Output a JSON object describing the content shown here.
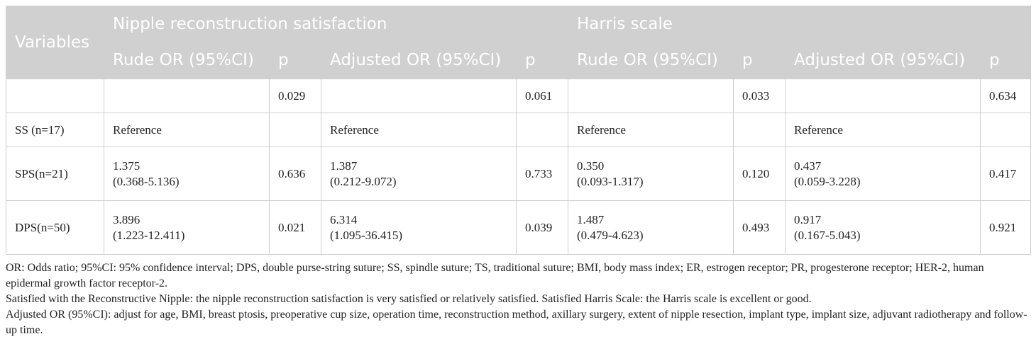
{
  "headers": {
    "variables": "Variables",
    "group1": "Nipple reconstruction satisfaction",
    "group2": "Harris scale",
    "sub": [
      "Rude OR (95%CI)",
      "p",
      "Adjusted OR (95%CI)",
      "p",
      "Rude OR (95%CI)",
      "p",
      "Adjusted OR (95%CI)",
      "p"
    ]
  },
  "rows": [
    {
      "label": "",
      "c": [
        [
          "",
          ""
        ],
        "0.029",
        [
          "",
          ""
        ],
        "0.061",
        [
          "",
          ""
        ],
        "0.033",
        [
          "",
          ""
        ],
        "0.634"
      ]
    },
    {
      "label": "SS (n=17)",
      "c": [
        [
          "Reference",
          ""
        ],
        "",
        [
          "Reference",
          ""
        ],
        "",
        [
          "Reference",
          ""
        ],
        "",
        [
          "Reference",
          ""
        ],
        ""
      ]
    },
    {
      "label": "SPS(n=21)",
      "c": [
        [
          "1.375",
          "(0.368-5.136)"
        ],
        "0.636",
        [
          "1.387",
          "(0.212-9.072)"
        ],
        "0.733",
        [
          "0.350",
          "(0.093-1.317)"
        ],
        "0.120",
        [
          "0.437",
          "(0.059-3.228)"
        ],
        "0.417"
      ]
    },
    {
      "label": "DPS(n=50)",
      "c": [
        [
          "3.896",
          "(1.223-12.411)"
        ],
        "0.021",
        [
          "6.314",
          "(1.095-36.415)"
        ],
        "0.039",
        [
          "1.487",
          "(0.479-4.623)"
        ],
        "0.493",
        [
          "0.917",
          "(0.167-5.043)"
        ],
        "0.921"
      ]
    }
  ],
  "notes": [
    "OR: Odds ratio; 95%CI: 95% confidence interval; DPS, double purse-string suture; SS, spindle suture; TS, traditional suture; BMI, body mass index; ER, estrogen receptor; PR, progesterone receptor; HER-2, human epidermal growth factor receptor-2.",
    "Satisfied with the Reconstructive Nipple: the nipple reconstruction satisfaction is very satisfied or relatively satisfied. Satisfied Harris Scale: the Harris scale is excellent or good.",
    "Adjusted OR (95%CI): adjust for age, BMI, breast ptosis, preoperative cup size, operation time, reconstruction method, axillary surgery, extent of nipple resection, implant type, implant size, adjuvant radiotherapy and follow-up time."
  ],
  "colors": {
    "header_bg": "#d0d0d0",
    "header_text": "#ffffff",
    "border": "#cfcfcf"
  }
}
